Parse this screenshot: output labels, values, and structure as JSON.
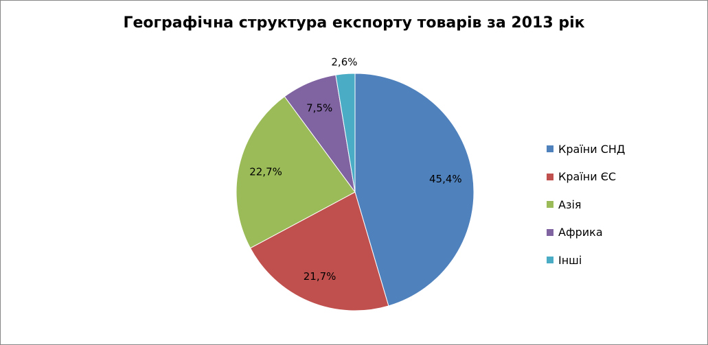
{
  "chart_data": {
    "type": "pie",
    "title": "Географічна структура експорту товарів за 2013 рік",
    "legend_position": "right",
    "slices": [
      {
        "name": "Країни СНД",
        "value": 45.4,
        "label": "45,4%",
        "color": "#4F81BD"
      },
      {
        "name": "Країни ЄС",
        "value": 21.7,
        "label": "21,7%",
        "color": "#C0504D"
      },
      {
        "name": "Азія",
        "value": 22.7,
        "label": "22,7%",
        "color": "#9BBB59"
      },
      {
        "name": "Африка",
        "value": 7.5,
        "label": "7,5%",
        "color": "#8064A2"
      },
      {
        "name": "Інші",
        "value": 2.6,
        "label": "2,6%",
        "color": "#4BACC6"
      }
    ]
  }
}
